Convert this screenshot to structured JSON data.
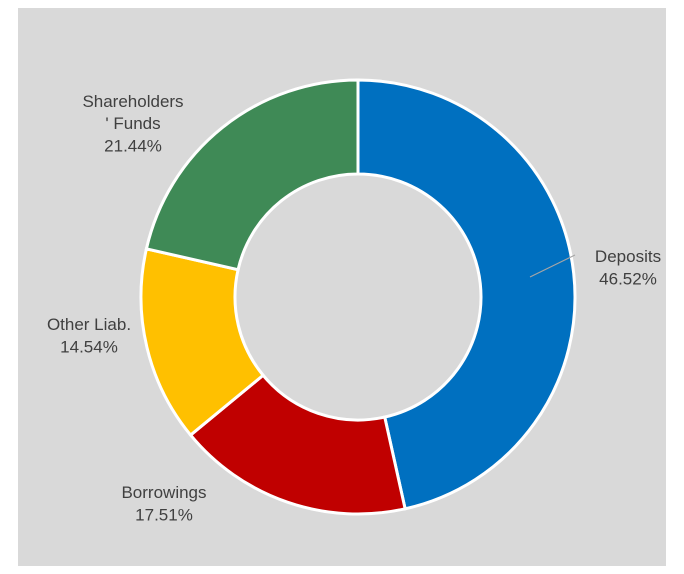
{
  "chart_data": {
    "type": "donut",
    "categories": [
      "Deposits",
      "Borrowings",
      "Other Liab.",
      "Shareholders\n' Funds"
    ],
    "values": [
      46.52,
      17.51,
      14.54,
      21.44
    ],
    "value_labels": [
      "46.52%",
      "17.51%",
      "14.54%",
      "21.44%"
    ],
    "colors": [
      "#0070c0",
      "#c00000",
      "#ffc000",
      "#3f8a56"
    ]
  }
}
